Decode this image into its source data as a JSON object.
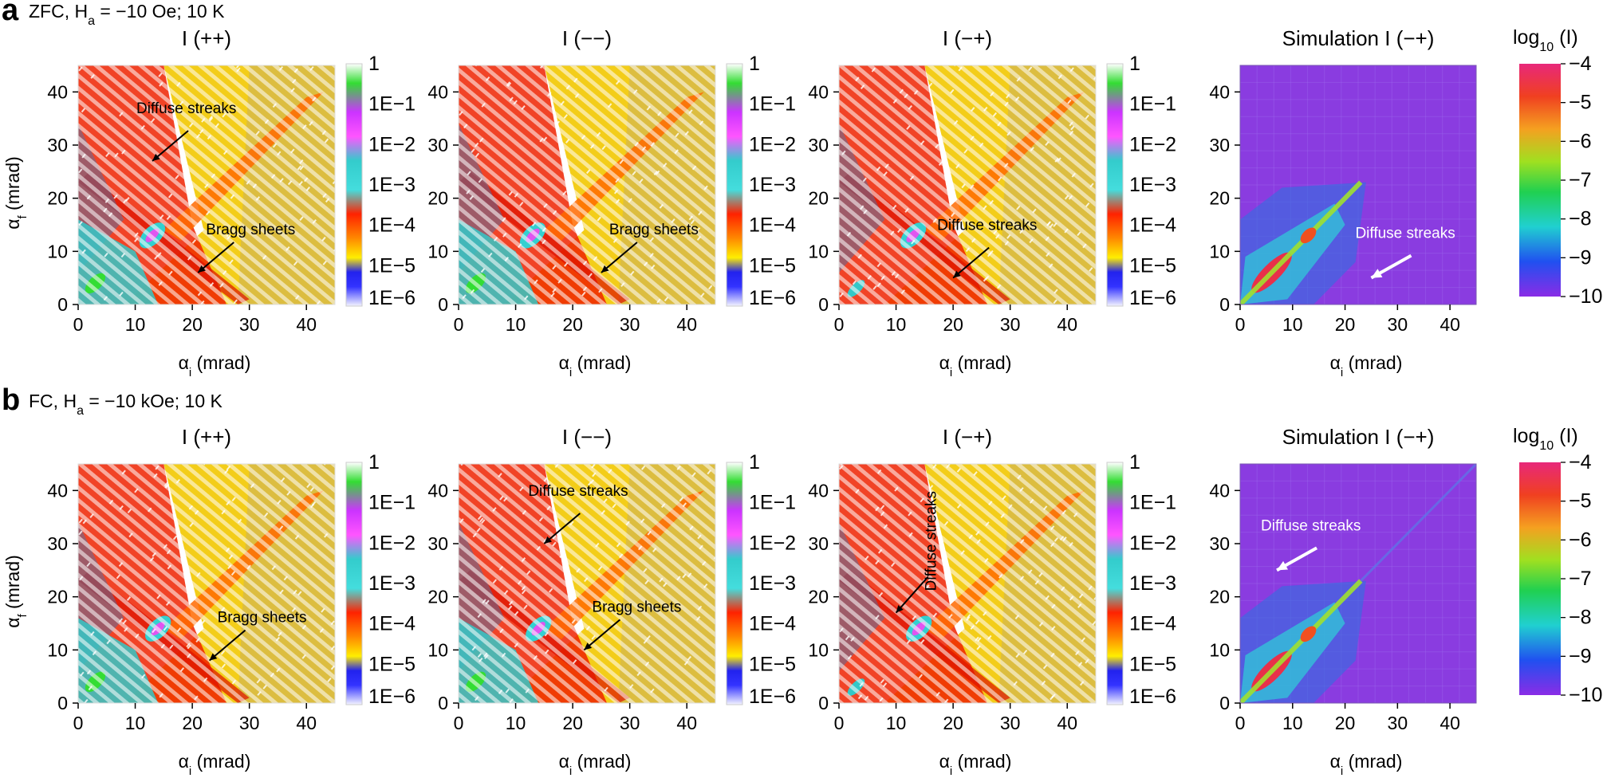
{
  "figure": {
    "rows": [
      {
        "letter": "a",
        "condition": "ZFC, H",
        "condition_sub": "a",
        "condition_rest": " = −10 Oe; 10 K",
        "panels": [
          {
            "title": "I (++)",
            "annotations": [
              {
                "text": "Diffuse streaks"
              },
              {
                "text": "Bragg sheets"
              }
            ]
          },
          {
            "title": "I (−−)",
            "annotations": [
              {
                "text": "Bragg sheets"
              }
            ]
          },
          {
            "title": "I (−+)",
            "annotations": [
              {
                "text": "Diffuse streaks"
              }
            ]
          },
          {
            "title": "Simulation I (−+)",
            "annotations": [
              {
                "text": "Diffuse streaks"
              }
            ]
          }
        ]
      },
      {
        "letter": "b",
        "condition": "FC, H",
        "condition_sub": "a",
        "condition_rest": " = −10 kOe; 10 K",
        "panels": [
          {
            "title": "I (++)",
            "annotations": [
              {
                "text": "Bragg sheets"
              }
            ]
          },
          {
            "title": "I (−−)",
            "annotations": [
              {
                "text": "Diffuse streaks"
              },
              {
                "text": "Bragg sheets"
              }
            ]
          },
          {
            "title": "I (−+)",
            "annotations": [
              {
                "text": "Diffuse streaks"
              }
            ]
          },
          {
            "title": "Simulation I (−+)",
            "annotations": [
              {
                "text": "Diffuse streaks"
              }
            ]
          }
        ]
      }
    ],
    "x_label_greek": "α",
    "x_label_sub": "i",
    "x_label_unit": " (mrad)",
    "y_label_greek": "α",
    "y_label_sub": "f",
    "y_label_unit": " (mrad)",
    "exp_colorbar_ticks": [
      "1",
      "1E−1",
      "1E−2",
      "1E−3",
      "1E−4",
      "1E−5",
      "1E−6"
    ],
    "sim_colorbar_title": "log",
    "sim_colorbar_title_sub": "10",
    "sim_colorbar_title_rest": " (I)",
    "sim_colorbar_ticks": [
      "−4",
      "−5",
      "−6",
      "−7",
      "−8",
      "−9",
      "−10"
    ],
    "exp_axis_ticks": [
      "0",
      "10",
      "20",
      "30",
      "40"
    ]
  },
  "chart_data": {
    "type": "heatmap",
    "description_note": "2D off-specular polarized neutron reflectivity maps, intensity vs incident and exit angle",
    "xlabel": "αi (mrad)",
    "ylabel": "αf (mrad)",
    "xlim": [
      0,
      45
    ],
    "ylim": [
      0,
      45
    ],
    "x_ticks": [
      0,
      10,
      20,
      30,
      40
    ],
    "y_ticks": [
      0,
      10,
      20,
      30,
      40
    ],
    "experimental_colorbar": {
      "scale": "log",
      "min": 1e-06,
      "max": 1,
      "ticks": [
        1,
        0.1,
        0.01,
        0.001,
        0.0001,
        1e-05,
        1e-06
      ]
    },
    "simulation_colorbar": {
      "scale": "log10",
      "min": -10,
      "max": -4,
      "ticks": [
        -4,
        -5,
        -6,
        -7,
        -8,
        -9,
        -10
      ]
    },
    "panels": [
      {
        "row": "a",
        "title": "I (++)",
        "specular_peak": [
          13,
          13
        ],
        "annotations": [
          {
            "text": "Diffuse streaks",
            "points_to": [
              13,
              27
            ]
          },
          {
            "text": "Bragg sheets",
            "points_to": [
              21,
              6
            ]
          }
        ]
      },
      {
        "row": "a",
        "title": "I (−−)",
        "specular_peak": [
          13,
          13
        ],
        "annotations": [
          {
            "text": "Bragg sheets",
            "points_to": [
              25,
              6
            ]
          }
        ]
      },
      {
        "row": "a",
        "title": "I (−+)",
        "specular_peak": [
          13,
          13
        ],
        "annotations": [
          {
            "text": "Diffuse streaks",
            "points_to": [
              20,
              5
            ]
          }
        ]
      },
      {
        "row": "a",
        "title": "Simulation I (−+)",
        "specular_peak": [
          13,
          13
        ],
        "annotations": [
          {
            "text": "Diffuse streaks",
            "points_to": [
              25,
              5
            ]
          }
        ]
      },
      {
        "row": "b",
        "title": "I (++)",
        "specular_peak": [
          14,
          14
        ],
        "annotations": [
          {
            "text": "Bragg sheets",
            "points_to": [
              23,
              8
            ]
          }
        ]
      },
      {
        "row": "b",
        "title": "I (−−)",
        "specular_peak": [
          14,
          14
        ],
        "annotations": [
          {
            "text": "Diffuse streaks",
            "points_to": [
              15,
              30
            ]
          },
          {
            "text": "Bragg sheets",
            "points_to": [
              22,
              10
            ]
          }
        ]
      },
      {
        "row": "b",
        "title": "I (−+)",
        "specular_peak": [
          14,
          14
        ],
        "annotations": [
          {
            "text": "Diffuse streaks",
            "points_to": [
              10,
              17
            ]
          }
        ]
      },
      {
        "row": "b",
        "title": "Simulation I (−+)",
        "specular_peak": [
          13,
          13
        ],
        "annotations": [
          {
            "text": "Diffuse streaks",
            "points_to": [
              7,
              25
            ]
          }
        ]
      }
    ]
  }
}
